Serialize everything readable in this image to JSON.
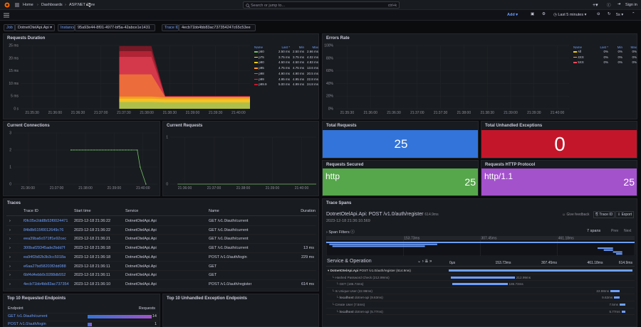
{
  "topbar": {
    "breadcrumb": [
      "Home",
      "Dashboards",
      "ASP.NET Core"
    ],
    "search_placeholder": "Search or jump to...",
    "shortcut": "ctrl+k",
    "sign_in": "Sign in"
  },
  "toolbar": {
    "add": "Add",
    "time_range": "Last 5 minutes",
    "refresh": "5s"
  },
  "variables": [
    {
      "label": "Job",
      "value": "DotnetOtelApi.Api"
    },
    {
      "label": "Instance",
      "value": "95a93e44-8f01-4977-bf5a-42abce1e1431"
    },
    {
      "label": "Trace ID",
      "value": "4ecb71bb4bb83ac737354247c65c53ee"
    }
  ],
  "req_duration": {
    "title": "Requests Duration",
    "cols": [
      "Name",
      "Last *",
      "Min",
      "Max"
    ],
    "rows": [
      [
        "p50",
        "2.50 ms",
        "2.50 ms",
        "2.66 ms"
      ],
      [
        "p75",
        "3.75 ms",
        "3.75 ms",
        "4.02 ms"
      ],
      [
        "p90",
        "4.50 ms",
        "4.50 ms",
        "4.83 ms"
      ],
      [
        "p95",
        "4.75 ms",
        "4.75 ms",
        "13.6 ms"
      ],
      [
        "p98",
        "4.90 ms",
        "4.90 ms",
        "20.5 ms"
      ],
      [
        "p99",
        "4.95 ms",
        "4.95 ms",
        "22.8 ms"
      ],
      [
        "p99.9",
        "5.00 ms",
        "4.99 ms",
        "24.8 ms"
      ]
    ],
    "colors": [
      "#73bf69",
      "#fade2a",
      "#f2cc0c",
      "#ff9830",
      "#f2495c",
      "#e02f44",
      "#c4162a"
    ],
    "yticks": [
      "25 ms",
      "20 ms",
      "15 ms",
      "10 ms",
      "5 ms",
      "0 s"
    ],
    "xticks": [
      "21:35:30",
      "21:36:00",
      "21:36:30",
      "21:37:00",
      "21:37:30",
      "21:38:00",
      "21:38:30",
      "21:39:00",
      "21:39:30",
      "21:40:00"
    ]
  },
  "error_rates": {
    "title": "Errors Rate",
    "cols": [
      "Name",
      "Last *",
      "Min",
      "Max"
    ],
    "rows": [
      [
        "All",
        "0%",
        "0%",
        "0%"
      ],
      [
        "4XX",
        "0%",
        "0%",
        "0%"
      ],
      [
        "5XX",
        "0%",
        "0%",
        "0%"
      ]
    ],
    "colors": [
      "#f2cc0c",
      "#ff9830",
      "#f2495c"
    ],
    "yticks": [
      "100%",
      "80%",
      "60%",
      "40%",
      "20%",
      "0%"
    ],
    "xticks": [
      "21:35:30",
      "21:36:00",
      "21:36:30",
      "21:37:00",
      "21:37:30",
      "21:38:00",
      "21:38:30",
      "21:39:00",
      "21:39:30",
      "21:40:00"
    ]
  },
  "current_connections": {
    "title": "Current Connections",
    "yticks": [
      "3",
      "2",
      "1",
      "0"
    ],
    "xticks": [
      "21:36:00",
      "21:37:00",
      "21:38:00",
      "21:39:00",
      "21:40:00"
    ]
  },
  "current_requests": {
    "title": "Current Requests",
    "yticks": [
      "1",
      "0"
    ],
    "xticks": [
      "21:36:00",
      "21:37:00",
      "21:38:00",
      "21:39:00",
      "21:40:00"
    ]
  },
  "stats": {
    "total_requests": {
      "title": "Total Requests",
      "value": "25"
    },
    "unhandled": {
      "title": "Total Unhandled Exceptions",
      "value": "0"
    },
    "secured": {
      "title": "Requests Secured",
      "label": "http",
      "value": "25"
    },
    "protocol": {
      "title": "Requests HTTP Protocol",
      "label": "http/1.1",
      "value": "25"
    }
  },
  "traces": {
    "title": "Traces",
    "cols": [
      "Trace ID",
      "Start time",
      "Service",
      "Name",
      "Duration"
    ],
    "rows": [
      [
        "f0fc05e2dd8b53f0024471",
        "2023-12-18 21:36:22",
        "DotnetOtelApi.Api",
        "GET /v1.0/auth/current",
        ""
      ],
      [
        "84b8b515f0012649c76",
        "2023-12-18 21:36:22",
        "DotnetOtelApi.Api",
        "GET /v1.0/auth/current",
        ""
      ],
      [
        "eea39ba6c071ff1e92cec",
        "2023-12-18 21:36:21",
        "DotnetOtelApi.Api",
        "GET /v1.0/auth/current",
        ""
      ],
      [
        "300baf29345ade2bdd7f",
        "2023-12-18 21:36:18",
        "DotnetOtelApi.Api",
        "GET /v1.0/auth/current",
        "13 ms"
      ],
      [
        "ea94f2b82b3b3cc5018a",
        "2023-12-18 21:36:18",
        "DotnetOtelApi.Api",
        "POST /v1.0/auth/login",
        "229 ms"
      ],
      [
        "e6aa27bd58203f2dd088",
        "2023-12-18 21:36:11",
        "DotnetOtelApi.Api",
        "GET",
        ""
      ],
      [
        "6bf4d4ebb0c9288db552",
        "2023-12-18 21:36:11",
        "DotnetOtelApi.Api",
        "GET",
        ""
      ],
      [
        "4ecb71bb4bb83ac737354",
        "2023-12-18 21:36:10",
        "DotnetOtelApi.Api",
        "POST /v1.0/auth/register",
        "614 ms"
      ]
    ]
  },
  "trace_spans": {
    "title": "Trace Spans",
    "heading": "DotnetOtelApi.Api: POST /v1.0/auth/register",
    "duration": "614.9ms",
    "timestamp": "2023-12-18 21:36:10.569",
    "give_feedback": "Give feedback",
    "trace_id_btn": "Trace ID",
    "export_btn": "Export",
    "span_filters": "Span Filters",
    "spans_count": "7 spans",
    "prev": "Prev",
    "next": "Next",
    "service_op": "Service & Operation",
    "ticks": [
      "0μs",
      "153.73ms",
      "307.45ms",
      "461.18ms",
      "614.9ms"
    ],
    "mini_ticks": [
      "",
      "153.73ms",
      "307.45ms",
      "461.18ms"
    ],
    "spans": [
      {
        "svc": "DotnetOtelApi.Api",
        "op": "POST /v1.0/auth/register (614.9ms)",
        "bar": "",
        "start": 0,
        "dur": 1,
        "color": "#6e9fff"
      },
      {
        "svc": "",
        "op": "Hashed Password Check (212.99ms)",
        "bar": "212.99ms",
        "start": 0.01,
        "dur": 0.35,
        "color": "#6e9fff"
      },
      {
        "svc": "",
        "op": "GET (186.73ms)",
        "bar": "186.73ms",
        "start": 0.02,
        "dur": 0.3,
        "color": "#6e9fff"
      },
      {
        "svc": "",
        "op": "Is Unique User (22.98ms)",
        "bar": "22.98ms",
        "start": 0.88,
        "dur": 0.05,
        "color": "#6e9fff"
      },
      {
        "svc": "localhost",
        "op": "dotnet-api (9.63ms)",
        "bar": "9.63ms",
        "start": 0.9,
        "dur": 0.03,
        "color": "#6e9fff"
      },
      {
        "svc": "",
        "op": "Create User (7.5ms)",
        "bar": "7.5ms",
        "start": 0.93,
        "dur": 0.03,
        "color": "#6e9fff"
      },
      {
        "svc": "localhost",
        "op": "dotnet-api (5.77ms)",
        "bar": "5.77ms",
        "start": 0.94,
        "dur": 0.02,
        "color": "#6e9fff"
      }
    ]
  },
  "top_endpoints": {
    "title": "Top 10 Requested Endpoints",
    "cols": [
      "Endpoint",
      "Requests"
    ],
    "rows": [
      [
        "GET /v1.0/auth/current",
        "14"
      ],
      [
        "POST /v1.0/auth/login",
        "1"
      ]
    ],
    "max": 14
  },
  "top_exceptions": {
    "title": "Top 10 Unhandled Exception Endpoints"
  }
}
